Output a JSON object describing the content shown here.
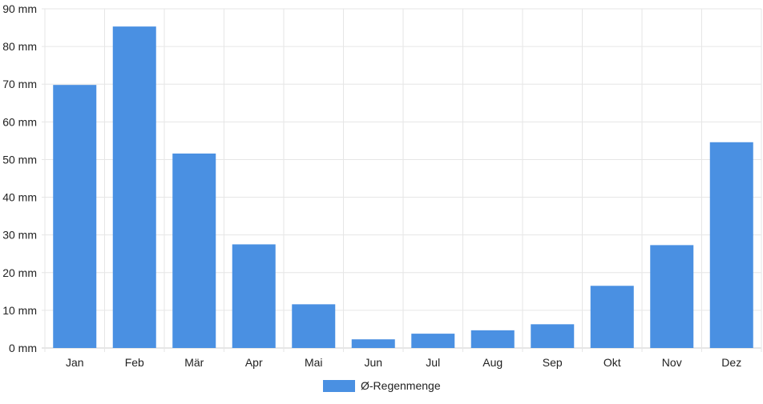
{
  "chart_data": {
    "type": "bar",
    "categories": [
      "Jan",
      "Feb",
      "Mär",
      "Apr",
      "Mai",
      "Jun",
      "Jul",
      "Aug",
      "Sep",
      "Okt",
      "Nov",
      "Dez"
    ],
    "series": [
      {
        "name": "Ø-Regenmenge",
        "color": "#4a90e2",
        "values": [
          69.8,
          85.3,
          51.6,
          27.5,
          11.6,
          2.3,
          3.8,
          4.7,
          6.3,
          16.5,
          27.3,
          54.6
        ]
      }
    ],
    "yticks": [
      0,
      10,
      20,
      30,
      40,
      50,
      60,
      70,
      80,
      90
    ],
    "ytick_unit": " mm",
    "ylim": [
      0,
      90
    ],
    "grid": true,
    "legend": "bottom-center",
    "colors": {
      "grid": "#e6e6e6",
      "axis": "#cccccc",
      "text": "#222222"
    }
  }
}
